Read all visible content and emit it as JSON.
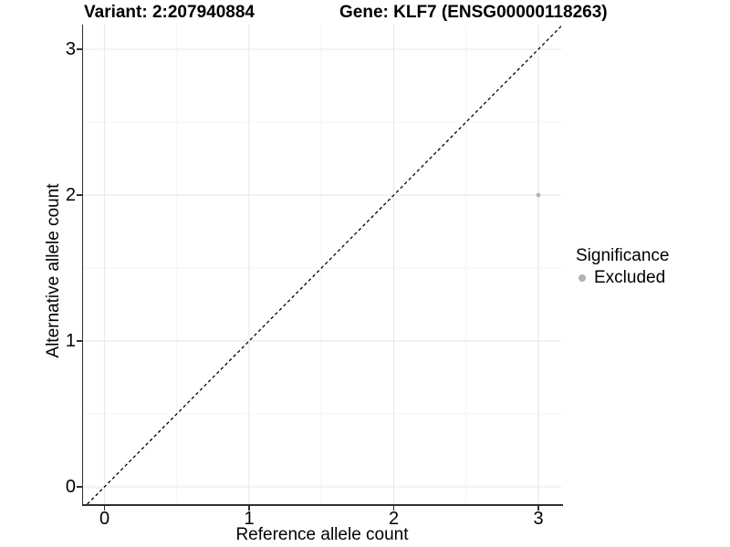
{
  "figure": {
    "titles": {
      "variant": "Variant: 2:207940884",
      "gene": "Gene: KLF7 (ENSG00000118263)"
    }
  },
  "chart_data": {
    "type": "scatter",
    "title": "Variant: 2:207940884    Gene: KLF7 (ENSG00000118263)",
    "xlabel": "Reference allele count",
    "ylabel": "Alternative allele count",
    "xlim": [
      -0.16,
      3.16
    ],
    "ylim": [
      -0.12,
      3.17
    ],
    "x_ticks": [
      0,
      1,
      2,
      3
    ],
    "y_ticks": [
      0,
      1,
      2,
      3
    ],
    "x_minor_ticks": [
      0.5,
      1.5,
      2.5
    ],
    "y_minor_ticks": [
      0.5,
      1.5,
      2.5
    ],
    "grid": true,
    "reference_line": {
      "kind": "identity y=x",
      "style": "dashed",
      "color": "#000000"
    },
    "series": [
      {
        "name": "Excluded",
        "color": "#b4b4b4",
        "marker": "circle",
        "points": [
          {
            "x": 3,
            "y": 2
          }
        ]
      }
    ],
    "legend": {
      "title": "Significance",
      "position": "right",
      "items": [
        {
          "label": "Excluded",
          "color": "#b4b4b4"
        }
      ]
    },
    "colors": {
      "grid_major": "#e9e9e9",
      "grid_minor": "#f4f4f4",
      "axis": "#2f2f2f",
      "text": "#000000"
    }
  }
}
